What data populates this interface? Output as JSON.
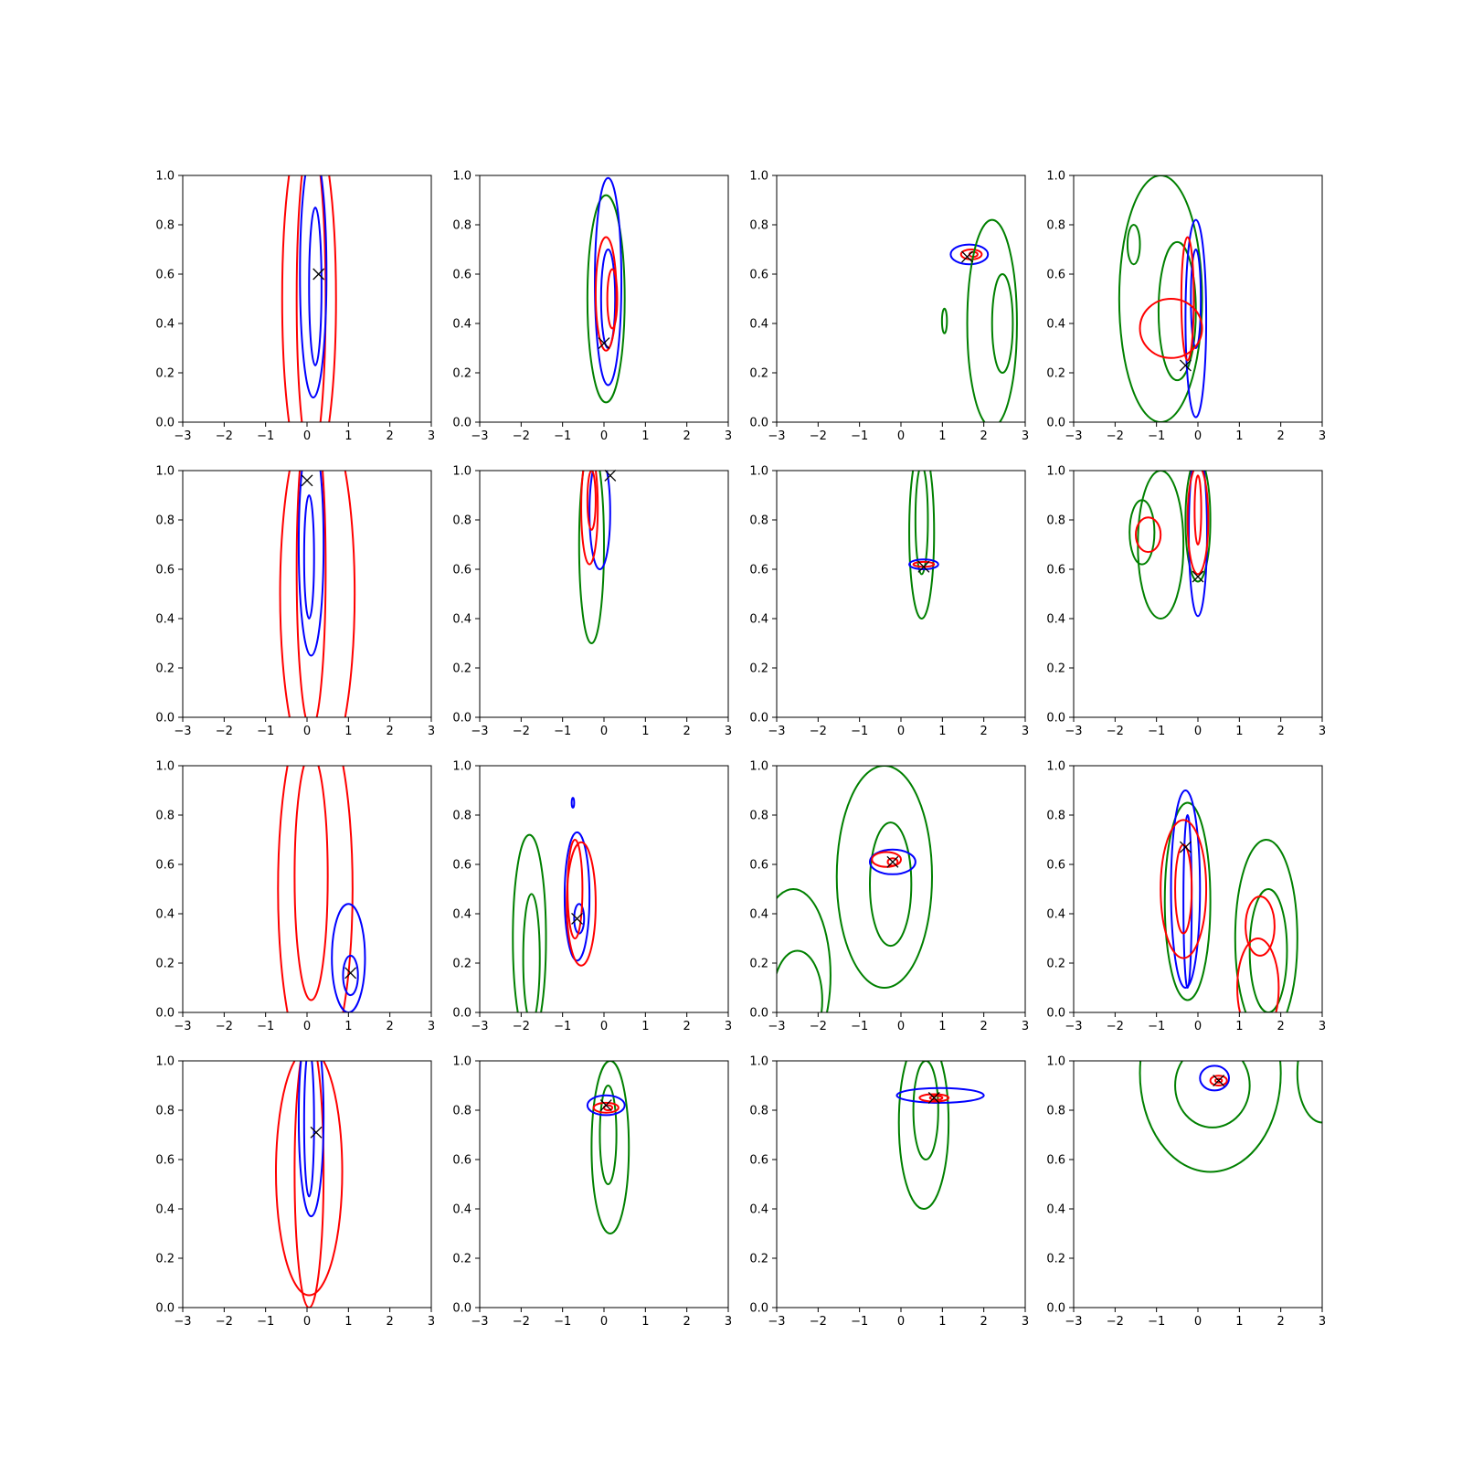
{
  "figure": {
    "axis_color": "#000000",
    "series_colors": {
      "red": "#ff0000",
      "blue": "#0000ff",
      "green": "#008000",
      "marker": "#000000"
    }
  },
  "chart_data": [
    {
      "type": "contour",
      "xlim": [
        -3,
        3
      ],
      "ylim": [
        0,
        1
      ],
      "x_ticks": [
        "−3",
        "−2",
        "−1",
        "0",
        "1",
        "2",
        "3"
      ],
      "y_ticks": [
        "0.0",
        "0.2",
        "0.4",
        "0.6",
        "0.8",
        "1.0"
      ],
      "marker": {
        "x": 0.28,
        "y": 0.6
      },
      "contours": [
        {
          "color": "red",
          "cx": 0.05,
          "cy": 0.5,
          "rx": 0.65,
          "ry": 0.75
        },
        {
          "color": "red",
          "cx": 0.1,
          "cy": 0.5,
          "rx": 0.35,
          "ry": 0.65
        },
        {
          "color": "blue",
          "cx": 0.15,
          "cy": 0.6,
          "rx": 0.32,
          "ry": 0.5
        },
        {
          "color": "blue",
          "cx": 0.2,
          "cy": 0.55,
          "rx": 0.15,
          "ry": 0.32
        }
      ]
    },
    {
      "type": "contour",
      "xlim": [
        -3,
        3
      ],
      "ylim": [
        0,
        1
      ],
      "x_ticks": [
        "−3",
        "−2",
        "−1",
        "0",
        "1",
        "2",
        "3"
      ],
      "y_ticks": [
        "0.0",
        "0.2",
        "0.4",
        "0.6",
        "0.8",
        "1.0"
      ],
      "marker": {
        "x": 0.0,
        "y": 0.32
      },
      "contours": [
        {
          "color": "green",
          "cx": 0.05,
          "cy": 0.5,
          "rx": 0.45,
          "ry": 0.42
        },
        {
          "color": "blue",
          "cx": 0.1,
          "cy": 0.57,
          "rx": 0.32,
          "ry": 0.42
        },
        {
          "color": "blue",
          "cx": 0.1,
          "cy": 0.5,
          "rx": 0.17,
          "ry": 0.2
        },
        {
          "color": "red",
          "cx": 0.05,
          "cy": 0.52,
          "rx": 0.25,
          "ry": 0.23
        },
        {
          "color": "red",
          "cx": 0.2,
          "cy": 0.5,
          "rx": 0.12,
          "ry": 0.12
        }
      ]
    },
    {
      "type": "contour",
      "xlim": [
        -3,
        3
      ],
      "ylim": [
        0,
        1
      ],
      "x_ticks": [
        "−3",
        "−2",
        "−1",
        "0",
        "1",
        "2",
        "3"
      ],
      "y_ticks": [
        "0.0",
        "0.2",
        "0.4",
        "0.6",
        "0.8",
        "1.0"
      ],
      "marker": {
        "x": 1.6,
        "y": 0.67
      },
      "contours": [
        {
          "color": "blue",
          "cx": 1.65,
          "cy": 0.68,
          "rx": 0.45,
          "ry": 0.04
        },
        {
          "color": "red",
          "cx": 1.7,
          "cy": 0.68,
          "rx": 0.25,
          "ry": 0.02
        },
        {
          "color": "red",
          "cx": 1.75,
          "cy": 0.68,
          "rx": 0.1,
          "ry": 0.01
        },
        {
          "color": "green",
          "cx": 2.2,
          "cy": 0.4,
          "rx": 0.6,
          "ry": 0.42
        },
        {
          "color": "green",
          "cx": 2.45,
          "cy": 0.4,
          "rx": 0.25,
          "ry": 0.2
        },
        {
          "color": "green",
          "cx": 1.05,
          "cy": 0.41,
          "rx": 0.06,
          "ry": 0.05
        }
      ]
    },
    {
      "type": "contour",
      "xlim": [
        -3,
        3
      ],
      "ylim": [
        0,
        1
      ],
      "x_ticks": [
        "−3",
        "−2",
        "−1",
        "0",
        "1",
        "2",
        "3"
      ],
      "y_ticks": [
        "0.0",
        "0.2",
        "0.4",
        "0.6",
        "0.8",
        "1.0"
      ],
      "marker": {
        "x": -0.3,
        "y": 0.23
      },
      "contours": [
        {
          "color": "green",
          "cx": -0.9,
          "cy": 0.5,
          "rx": 1.0,
          "ry": 0.5
        },
        {
          "color": "green",
          "cx": -0.5,
          "cy": 0.45,
          "rx": 0.45,
          "ry": 0.28
        },
        {
          "color": "green",
          "cx": -1.55,
          "cy": 0.72,
          "rx": 0.15,
          "ry": 0.08
        },
        {
          "color": "blue",
          "cx": -0.05,
          "cy": 0.42,
          "rx": 0.25,
          "ry": 0.4
        },
        {
          "color": "blue",
          "cx": -0.05,
          "cy": 0.5,
          "rx": 0.12,
          "ry": 0.2
        },
        {
          "color": "red",
          "cx": -0.65,
          "cy": 0.38,
          "rx": 0.75,
          "ry": 0.12
        },
        {
          "color": "red",
          "cx": -0.25,
          "cy": 0.5,
          "rx": 0.15,
          "ry": 0.25
        }
      ]
    },
    {
      "type": "contour",
      "xlim": [
        -3,
        3
      ],
      "ylim": [
        0,
        1
      ],
      "x_ticks": [
        "−3",
        "−2",
        "−1",
        "0",
        "1",
        "2",
        "3"
      ],
      "y_ticks": [
        "0.0",
        "0.2",
        "0.4",
        "0.6",
        "0.8",
        "1.0"
      ],
      "marker": {
        "x": 0.0,
        "y": 0.96
      },
      "contours": [
        {
          "color": "red",
          "cx": 0.25,
          "cy": 0.5,
          "rx": 0.9,
          "ry": 0.75
        },
        {
          "color": "red",
          "cx": 0.1,
          "cy": 0.6,
          "rx": 0.35,
          "ry": 0.65
        },
        {
          "color": "blue",
          "cx": 0.1,
          "cy": 0.7,
          "rx": 0.3,
          "ry": 0.45
        },
        {
          "color": "blue",
          "cx": 0.05,
          "cy": 0.65,
          "rx": 0.12,
          "ry": 0.25
        }
      ]
    },
    {
      "type": "contour",
      "xlim": [
        -3,
        3
      ],
      "ylim": [
        0,
        1
      ],
      "x_ticks": [
        "−3",
        "−2",
        "−1",
        "0",
        "1",
        "2",
        "3"
      ],
      "y_ticks": [
        "0.0",
        "0.2",
        "0.4",
        "0.6",
        "0.8",
        "1.0"
      ],
      "marker": {
        "x": 0.15,
        "y": 0.98
      },
      "contours": [
        {
          "color": "green",
          "cx": -0.3,
          "cy": 0.7,
          "rx": 0.3,
          "ry": 0.4
        },
        {
          "color": "blue",
          "cx": -0.1,
          "cy": 0.83,
          "rx": 0.25,
          "ry": 0.23
        },
        {
          "color": "red",
          "cx": -0.35,
          "cy": 0.85,
          "rx": 0.2,
          "ry": 0.23
        },
        {
          "color": "red",
          "cx": -0.3,
          "cy": 0.88,
          "rx": 0.1,
          "ry": 0.12
        }
      ]
    },
    {
      "type": "contour",
      "xlim": [
        -3,
        3
      ],
      "ylim": [
        0,
        1
      ],
      "x_ticks": [
        "−3",
        "−2",
        "−1",
        "0",
        "1",
        "2",
        "3"
      ],
      "y_ticks": [
        "0.0",
        "0.2",
        "0.4",
        "0.6",
        "0.8",
        "1.0"
      ],
      "marker": {
        "x": 0.55,
        "y": 0.61
      },
      "contours": [
        {
          "color": "green",
          "cx": 0.5,
          "cy": 0.75,
          "rx": 0.3,
          "ry": 0.35
        },
        {
          "color": "green",
          "cx": 0.5,
          "cy": 0.8,
          "rx": 0.15,
          "ry": 0.22
        },
        {
          "color": "blue",
          "cx": 0.55,
          "cy": 0.62,
          "rx": 0.35,
          "ry": 0.02
        },
        {
          "color": "red",
          "cx": 0.55,
          "cy": 0.62,
          "rx": 0.25,
          "ry": 0.01
        }
      ]
    },
    {
      "type": "contour",
      "xlim": [
        -3,
        3
      ],
      "ylim": [
        0,
        1
      ],
      "x_ticks": [
        "−3",
        "−2",
        "−1",
        "0",
        "1",
        "2",
        "3"
      ],
      "y_ticks": [
        "0.0",
        "0.2",
        "0.4",
        "0.6",
        "0.8",
        "1.0"
      ],
      "marker": {
        "x": 0.0,
        "y": 0.57
      },
      "contours": [
        {
          "color": "green",
          "cx": -0.9,
          "cy": 0.7,
          "rx": 0.55,
          "ry": 0.3
        },
        {
          "color": "green",
          "cx": -1.35,
          "cy": 0.75,
          "rx": 0.3,
          "ry": 0.13
        },
        {
          "color": "green",
          "cx": 0.0,
          "cy": 0.8,
          "rx": 0.3,
          "ry": 0.25
        },
        {
          "color": "blue",
          "cx": 0.0,
          "cy": 0.75,
          "rx": 0.22,
          "ry": 0.34
        },
        {
          "color": "red",
          "cx": -1.2,
          "cy": 0.74,
          "rx": 0.3,
          "ry": 0.07
        },
        {
          "color": "red",
          "cx": 0.0,
          "cy": 0.8,
          "rx": 0.25,
          "ry": 0.22
        },
        {
          "color": "red",
          "cx": 0.0,
          "cy": 0.84,
          "rx": 0.08,
          "ry": 0.14
        }
      ]
    },
    {
      "type": "contour",
      "xlim": [
        -3,
        3
      ],
      "ylim": [
        0,
        1
      ],
      "x_ticks": [
        "−3",
        "−2",
        "−1",
        "0",
        "1",
        "2",
        "3"
      ],
      "y_ticks": [
        "0.0",
        "0.2",
        "0.4",
        "0.6",
        "0.8",
        "1.0"
      ],
      "marker": {
        "x": 1.05,
        "y": 0.16
      },
      "contours": [
        {
          "color": "red",
          "cx": 0.2,
          "cy": 0.5,
          "rx": 0.9,
          "ry": 0.75
        },
        {
          "color": "red",
          "cx": 0.1,
          "cy": 0.55,
          "rx": 0.4,
          "ry": 0.5
        },
        {
          "color": "blue",
          "cx": 1.0,
          "cy": 0.22,
          "rx": 0.4,
          "ry": 0.22
        },
        {
          "color": "blue",
          "cx": 1.05,
          "cy": 0.15,
          "rx": 0.18,
          "ry": 0.08
        }
      ]
    },
    {
      "type": "contour",
      "xlim": [
        -3,
        3
      ],
      "ylim": [
        0,
        1
      ],
      "x_ticks": [
        "−3",
        "−2",
        "−1",
        "0",
        "1",
        "2",
        "3"
      ],
      "y_ticks": [
        "0.0",
        "0.2",
        "0.4",
        "0.6",
        "0.8",
        "1.0"
      ],
      "marker": {
        "x": -0.65,
        "y": 0.38
      },
      "contours": [
        {
          "color": "green",
          "cx": -1.8,
          "cy": 0.3,
          "rx": 0.4,
          "ry": 0.42
        },
        {
          "color": "green",
          "cx": -1.75,
          "cy": 0.22,
          "rx": 0.2,
          "ry": 0.26
        },
        {
          "color": "blue",
          "cx": -0.65,
          "cy": 0.47,
          "rx": 0.3,
          "ry": 0.26
        },
        {
          "color": "blue",
          "cx": -0.6,
          "cy": 0.38,
          "rx": 0.12,
          "ry": 0.06
        },
        {
          "color": "blue",
          "cx": -0.75,
          "cy": 0.85,
          "rx": 0.03,
          "ry": 0.02
        },
        {
          "color": "red",
          "cx": -0.55,
          "cy": 0.44,
          "rx": 0.35,
          "ry": 0.25
        },
        {
          "color": "red",
          "cx": -0.7,
          "cy": 0.5,
          "rx": 0.18,
          "ry": 0.2
        }
      ]
    },
    {
      "type": "contour",
      "xlim": [
        -3,
        3
      ],
      "ylim": [
        0,
        1
      ],
      "x_ticks": [
        "−3",
        "−2",
        "−1",
        "0",
        "1",
        "2",
        "3"
      ],
      "y_ticks": [
        "0.0",
        "0.2",
        "0.4",
        "0.6",
        "0.8",
        "1.0"
      ],
      "marker": {
        "x": -0.2,
        "y": 0.61
      },
      "contours": [
        {
          "color": "green",
          "cx": -0.4,
          "cy": 0.55,
          "rx": 1.15,
          "ry": 0.45
        },
        {
          "color": "green",
          "cx": -0.25,
          "cy": 0.52,
          "rx": 0.5,
          "ry": 0.25
        },
        {
          "color": "green",
          "cx": -2.6,
          "cy": 0.15,
          "rx": 0.9,
          "ry": 0.35
        },
        {
          "color": "green",
          "cx": -2.5,
          "cy": 0.05,
          "rx": 0.6,
          "ry": 0.2
        },
        {
          "color": "blue",
          "cx": -0.2,
          "cy": 0.61,
          "rx": 0.55,
          "ry": 0.05
        },
        {
          "color": "red",
          "cx": -0.35,
          "cy": 0.62,
          "rx": 0.35,
          "ry": 0.03
        },
        {
          "color": "red",
          "cx": -0.2,
          "cy": 0.61,
          "rx": 0.12,
          "ry": 0.015
        }
      ]
    },
    {
      "type": "contour",
      "xlim": [
        -3,
        3
      ],
      "ylim": [
        0,
        1
      ],
      "x_ticks": [
        "−3",
        "−2",
        "−1",
        "0",
        "1",
        "2",
        "3"
      ],
      "y_ticks": [
        "0.0",
        "0.2",
        "0.4",
        "0.6",
        "0.8",
        "1.0"
      ],
      "marker": {
        "x": -0.3,
        "y": 0.67
      },
      "contours": [
        {
          "color": "green",
          "cx": -0.25,
          "cy": 0.45,
          "rx": 0.55,
          "ry": 0.4
        },
        {
          "color": "green",
          "cx": 1.65,
          "cy": 0.3,
          "rx": 0.75,
          "ry": 0.4
        },
        {
          "color": "green",
          "cx": 1.7,
          "cy": 0.25,
          "rx": 0.45,
          "ry": 0.25
        },
        {
          "color": "blue",
          "cx": -0.3,
          "cy": 0.5,
          "rx": 0.35,
          "ry": 0.4
        },
        {
          "color": "blue",
          "cx": -0.25,
          "cy": 0.45,
          "rx": 0.1,
          "ry": 0.35
        },
        {
          "color": "red",
          "cx": -0.35,
          "cy": 0.5,
          "rx": 0.55,
          "ry": 0.28
        },
        {
          "color": "red",
          "cx": -0.35,
          "cy": 0.5,
          "rx": 0.2,
          "ry": 0.18
        },
        {
          "color": "red",
          "cx": 1.45,
          "cy": 0.1,
          "rx": 0.5,
          "ry": 0.2
        },
        {
          "color": "red",
          "cx": 1.5,
          "cy": 0.35,
          "rx": 0.35,
          "ry": 0.12
        }
      ]
    },
    {
      "type": "contour",
      "xlim": [
        -3,
        3
      ],
      "ylim": [
        0,
        1
      ],
      "x_ticks": [
        "−3",
        "−2",
        "−1",
        "0",
        "1",
        "2",
        "3"
      ],
      "y_ticks": [
        "0.0",
        "0.2",
        "0.4",
        "0.6",
        "0.8",
        "1.0"
      ],
      "marker": {
        "x": 0.22,
        "y": 0.71
      },
      "contours": [
        {
          "color": "red",
          "cx": 0.05,
          "cy": 0.55,
          "rx": 0.8,
          "ry": 0.5
        },
        {
          "color": "red",
          "cx": 0.05,
          "cy": 0.55,
          "rx": 0.35,
          "ry": 0.55
        },
        {
          "color": "blue",
          "cx": 0.1,
          "cy": 0.77,
          "rx": 0.3,
          "ry": 0.4
        },
        {
          "color": "blue",
          "cx": 0.05,
          "cy": 0.75,
          "rx": 0.12,
          "ry": 0.3
        }
      ]
    },
    {
      "type": "contour",
      "xlim": [
        -3,
        3
      ],
      "ylim": [
        0,
        1
      ],
      "x_ticks": [
        "−3",
        "−2",
        "−1",
        "0",
        "1",
        "2",
        "3"
      ],
      "y_ticks": [
        "0.0",
        "0.2",
        "0.4",
        "0.6",
        "0.8",
        "1.0"
      ],
      "marker": {
        "x": 0.05,
        "y": 0.82
      },
      "contours": [
        {
          "color": "green",
          "cx": 0.15,
          "cy": 0.65,
          "rx": 0.45,
          "ry": 0.35
        },
        {
          "color": "green",
          "cx": 0.1,
          "cy": 0.7,
          "rx": 0.2,
          "ry": 0.2
        },
        {
          "color": "blue",
          "cx": 0.05,
          "cy": 0.82,
          "rx": 0.45,
          "ry": 0.04
        },
        {
          "color": "red",
          "cx": 0.05,
          "cy": 0.81,
          "rx": 0.3,
          "ry": 0.02
        },
        {
          "color": "red",
          "cx": 0.1,
          "cy": 0.81,
          "rx": 0.1,
          "ry": 0.01
        }
      ]
    },
    {
      "type": "contour",
      "xlim": [
        -3,
        3
      ],
      "ylim": [
        0,
        1
      ],
      "x_ticks": [
        "−3",
        "−2",
        "−1",
        "0",
        "1",
        "2",
        "3"
      ],
      "y_ticks": [
        "0.0",
        "0.2",
        "0.4",
        "0.6",
        "0.8",
        "1.0"
      ],
      "marker": {
        "x": 0.8,
        "y": 0.85
      },
      "contours": [
        {
          "color": "green",
          "cx": 0.55,
          "cy": 0.75,
          "rx": 0.6,
          "ry": 0.35
        },
        {
          "color": "green",
          "cx": 0.6,
          "cy": 0.8,
          "rx": 0.3,
          "ry": 0.2
        },
        {
          "color": "blue",
          "cx": 0.95,
          "cy": 0.86,
          "rx": 1.05,
          "ry": 0.03
        },
        {
          "color": "red",
          "cx": 0.8,
          "cy": 0.85,
          "rx": 0.35,
          "ry": 0.015
        },
        {
          "color": "red",
          "cx": 0.85,
          "cy": 0.85,
          "rx": 0.15,
          "ry": 0.008
        }
      ]
    },
    {
      "type": "contour",
      "xlim": [
        -3,
        3
      ],
      "ylim": [
        0,
        1
      ],
      "x_ticks": [
        "−3",
        "−2",
        "−1",
        "0",
        "1",
        "2",
        "3"
      ],
      "y_ticks": [
        "0.0",
        "0.2",
        "0.4",
        "0.6",
        "0.8",
        "1.0"
      ],
      "marker": {
        "x": 0.5,
        "y": 0.92
      },
      "contours": [
        {
          "color": "green",
          "cx": 0.3,
          "cy": 0.95,
          "rx": 1.7,
          "ry": 0.4
        },
        {
          "color": "green",
          "cx": 0.35,
          "cy": 0.9,
          "rx": 0.9,
          "ry": 0.17
        },
        {
          "color": "green",
          "cx": 3.0,
          "cy": 0.95,
          "rx": 0.6,
          "ry": 0.2
        },
        {
          "color": "blue",
          "cx": 0.4,
          "cy": 0.93,
          "rx": 0.35,
          "ry": 0.05
        },
        {
          "color": "red",
          "cx": 0.5,
          "cy": 0.92,
          "rx": 0.2,
          "ry": 0.02
        },
        {
          "color": "red",
          "cx": 0.5,
          "cy": 0.92,
          "rx": 0.08,
          "ry": 0.008
        }
      ]
    }
  ]
}
